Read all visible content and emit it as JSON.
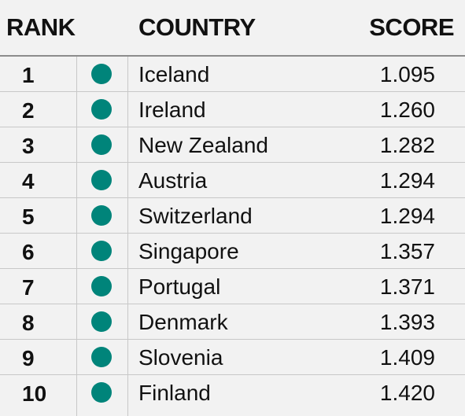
{
  "header": {
    "rank": "RANK",
    "country": "COUNTRY",
    "score": "SCORE"
  },
  "colors": {
    "dot": "#00847a",
    "background": "#f2f2f2"
  },
  "rows": [
    {
      "rank": "1",
      "country": "Iceland",
      "score": "1.095"
    },
    {
      "rank": "2",
      "country": "Ireland",
      "score": "1.260"
    },
    {
      "rank": "3",
      "country": "New Zealand",
      "score": "1.282"
    },
    {
      "rank": "4",
      "country": "Austria",
      "score": "1.294"
    },
    {
      "rank": "5",
      "country": "Switzerland",
      "score": "1.294"
    },
    {
      "rank": "6",
      "country": "Singapore",
      "score": "1.357"
    },
    {
      "rank": "7",
      "country": "Portugal",
      "score": "1.371"
    },
    {
      "rank": "8",
      "country": "Denmark",
      "score": "1.393"
    },
    {
      "rank": "9",
      "country": "Slovenia",
      "score": "1.409"
    },
    {
      "rank": "10",
      "country": "Finland",
      "score": "1.420"
    }
  ]
}
